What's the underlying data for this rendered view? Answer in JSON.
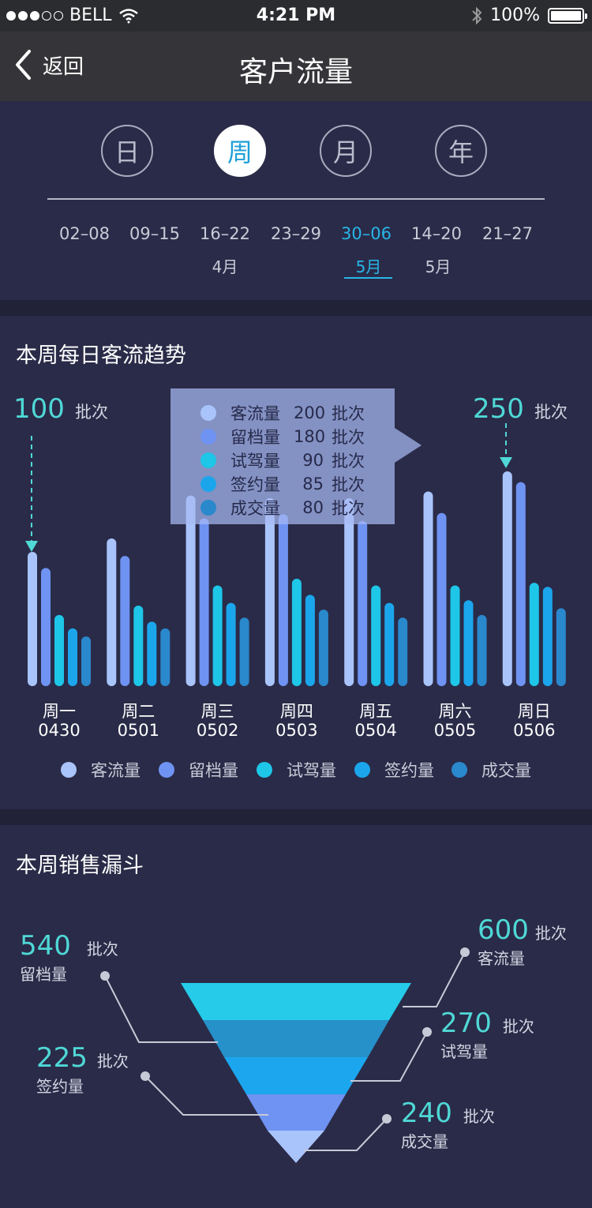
{
  "status": {
    "carrier": "BELL",
    "time": "4:21 PM",
    "battery": "100%"
  },
  "nav": {
    "back_label": "返回",
    "title": "客户流量"
  },
  "period_tabs": [
    {
      "label": "日",
      "active": false
    },
    {
      "label": "周",
      "active": true
    },
    {
      "label": "月",
      "active": false
    },
    {
      "label": "年",
      "active": false
    }
  ],
  "weeks": [
    {
      "range": "02–08",
      "month": "",
      "active": false
    },
    {
      "range": "09–15",
      "month": "",
      "active": false
    },
    {
      "range": "16–22",
      "month": "4月",
      "active": false
    },
    {
      "range": "23–29",
      "month": "",
      "active": false
    },
    {
      "range": "30–06",
      "month": "5月",
      "active": true
    },
    {
      "range": "14–20",
      "month": "5月",
      "active": false
    },
    {
      "range": "21–27",
      "month": "",
      "active": false
    }
  ],
  "trend": {
    "title": "本周每日客流趋势",
    "callout_left": {
      "value": "100",
      "unit": "批次"
    },
    "callout_right": {
      "value": "250",
      "unit": "批次"
    },
    "tooltip": [
      {
        "name": "客流量",
        "value": "200",
        "unit": "批次"
      },
      {
        "name": "留档量",
        "value": "180",
        "unit": "批次"
      },
      {
        "name": "试驾量",
        "value": "90",
        "unit": "批次"
      },
      {
        "name": "签约量",
        "value": "85",
        "unit": "批次"
      },
      {
        "name": "成交量",
        "value": "80",
        "unit": "批次"
      }
    ]
  },
  "funnel": {
    "title": "本周销售漏斗",
    "unit": "批次",
    "items": [
      {
        "name": "客流量",
        "value": "600"
      },
      {
        "name": "留档量",
        "value": "540"
      },
      {
        "name": "试驾量",
        "value": "270"
      },
      {
        "name": "签约量",
        "value": "225"
      },
      {
        "name": "成交量",
        "value": "240"
      }
    ]
  },
  "chart_data": {
    "type": "bar",
    "categories": [
      "周一 0430",
      "周二 0501",
      "周三 0502",
      "周四 0503",
      "周五 0504",
      "周六 0505",
      "周日 0506"
    ],
    "day_labels": [
      "周一",
      "周二",
      "周三",
      "周四",
      "周五",
      "周六",
      "周日"
    ],
    "date_labels": [
      "0430",
      "0501",
      "0502",
      "0503",
      "0504",
      "0505",
      "0506"
    ],
    "series": [
      {
        "name": "客流量",
        "color": "#a9c4fb",
        "values": [
          100,
          110,
          142,
          140,
          140,
          145,
          160
        ]
      },
      {
        "name": "留档量",
        "color": "#6f93f2",
        "values": [
          88,
          97,
          125,
          128,
          123,
          129,
          152
        ]
      },
      {
        "name": "试驾量",
        "color": "#1ec6e8",
        "values": [
          53,
          60,
          75,
          80,
          75,
          75,
          77
        ]
      },
      {
        "name": "签约量",
        "color": "#1ba6ec",
        "values": [
          43,
          48,
          62,
          68,
          62,
          64,
          74
        ]
      },
      {
        "name": "成交量",
        "color": "#2a88cc",
        "values": [
          37,
          43,
          51,
          57,
          51,
          53,
          58
        ]
      }
    ],
    "ylim": [
      0,
      250
    ],
    "grid": false
  }
}
